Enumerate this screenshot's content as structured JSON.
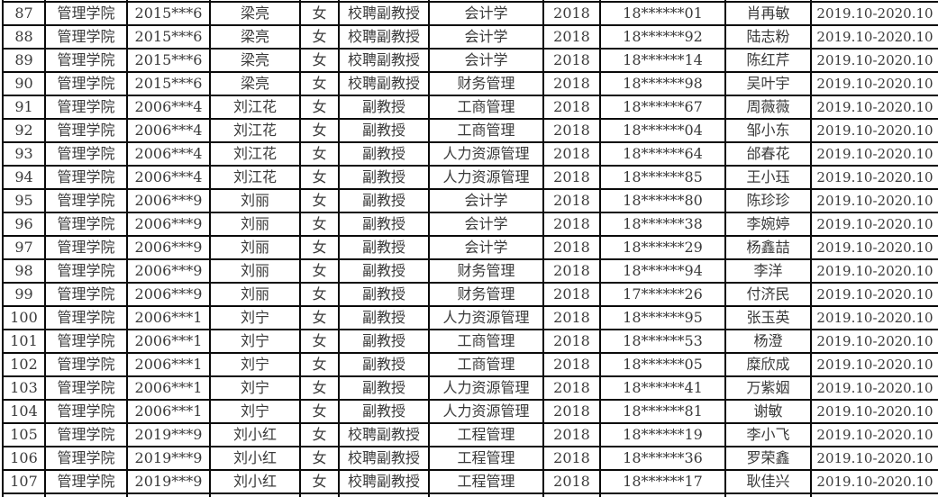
{
  "colors": {
    "background": "#ffffff",
    "border": "#0a0a0a",
    "text": "#3a3a3a"
  },
  "table": {
    "rows": [
      [
        "87",
        "管理学院",
        "2015***6",
        "梁亮",
        "女",
        "校聘副教授",
        "会计学",
        "2018",
        "18******01",
        "肖再敏",
        "2019.10-2020.10"
      ],
      [
        "88",
        "管理学院",
        "2015***6",
        "梁亮",
        "女",
        "校聘副教授",
        "会计学",
        "2018",
        "18******92",
        "陆志粉",
        "2019.10-2020.10"
      ],
      [
        "89",
        "管理学院",
        "2015***6",
        "梁亮",
        "女",
        "校聘副教授",
        "会计学",
        "2018",
        "18******14",
        "陈红芹",
        "2019.10-2020.10"
      ],
      [
        "90",
        "管理学院",
        "2015***6",
        "梁亮",
        "女",
        "校聘副教授",
        "财务管理",
        "2018",
        "18******98",
        "吴叶宇",
        "2019.10-2020.10"
      ],
      [
        "91",
        "管理学院",
        "2006***4",
        "刘江花",
        "女",
        "副教授",
        "工商管理",
        "2018",
        "18******67",
        "周薇薇",
        "2019.10-2020.10"
      ],
      [
        "92",
        "管理学院",
        "2006***4",
        "刘江花",
        "女",
        "副教授",
        "工商管理",
        "2018",
        "18******04",
        "邹小东",
        "2019.10-2020.10"
      ],
      [
        "93",
        "管理学院",
        "2006***4",
        "刘江花",
        "女",
        "副教授",
        "人力资源管理",
        "2018",
        "18******64",
        "邰春花",
        "2019.10-2020.10"
      ],
      [
        "94",
        "管理学院",
        "2006***4",
        "刘江花",
        "女",
        "副教授",
        "人力资源管理",
        "2018",
        "18******85",
        "王小珏",
        "2019.10-2020.10"
      ],
      [
        "95",
        "管理学院",
        "2006***9",
        "刘丽",
        "女",
        "副教授",
        "会计学",
        "2018",
        "18******80",
        "陈珍珍",
        "2019.10-2020.10"
      ],
      [
        "96",
        "管理学院",
        "2006***9",
        "刘丽",
        "女",
        "副教授",
        "会计学",
        "2018",
        "18******38",
        "李婉婷",
        "2019.10-2020.10"
      ],
      [
        "97",
        "管理学院",
        "2006***9",
        "刘丽",
        "女",
        "副教授",
        "会计学",
        "2018",
        "18******29",
        "杨鑫喆",
        "2019.10-2020.10"
      ],
      [
        "98",
        "管理学院",
        "2006***9",
        "刘丽",
        "女",
        "副教授",
        "财务管理",
        "2018",
        "18******94",
        "李洋",
        "2019.10-2020.10"
      ],
      [
        "99",
        "管理学院",
        "2006***9",
        "刘丽",
        "女",
        "副教授",
        "财务管理",
        "2018",
        "17******26",
        "付济民",
        "2019.10-2020.10"
      ],
      [
        "100",
        "管理学院",
        "2006***1",
        "刘宁",
        "女",
        "副教授",
        "人力资源管理",
        "2018",
        "18******95",
        "张玉英",
        "2019.10-2020.10"
      ],
      [
        "101",
        "管理学院",
        "2006***1",
        "刘宁",
        "女",
        "副教授",
        "工商管理",
        "2018",
        "18******53",
        "杨澄",
        "2019.10-2020.10"
      ],
      [
        "102",
        "管理学院",
        "2006***1",
        "刘宁",
        "女",
        "副教授",
        "工商管理",
        "2018",
        "18******05",
        "糜欣成",
        "2019.10-2020.10"
      ],
      [
        "103",
        "管理学院",
        "2006***1",
        "刘宁",
        "女",
        "副教授",
        "人力资源管理",
        "2018",
        "18******41",
        "万紫姻",
        "2019.10-2020.10"
      ],
      [
        "104",
        "管理学院",
        "2006***1",
        "刘宁",
        "女",
        "副教授",
        "人力资源管理",
        "2018",
        "18******81",
        "谢敏",
        "2019.10-2020.10"
      ],
      [
        "105",
        "管理学院",
        "2019***9",
        "刘小红",
        "女",
        "校聘副教授",
        "工程管理",
        "2018",
        "18******19",
        "李小飞",
        "2019.10-2020.10"
      ],
      [
        "106",
        "管理学院",
        "2019***9",
        "刘小红",
        "女",
        "校聘副教授",
        "工程管理",
        "2018",
        "18******36",
        "罗荣鑫",
        "2019.10-2020.10"
      ],
      [
        "107",
        "管理学院",
        "2019***9",
        "刘小红",
        "女",
        "校聘副教授",
        "工程管理",
        "2018",
        "18******17",
        "耿佳兴",
        "2019.10-2020.10"
      ]
    ]
  }
}
